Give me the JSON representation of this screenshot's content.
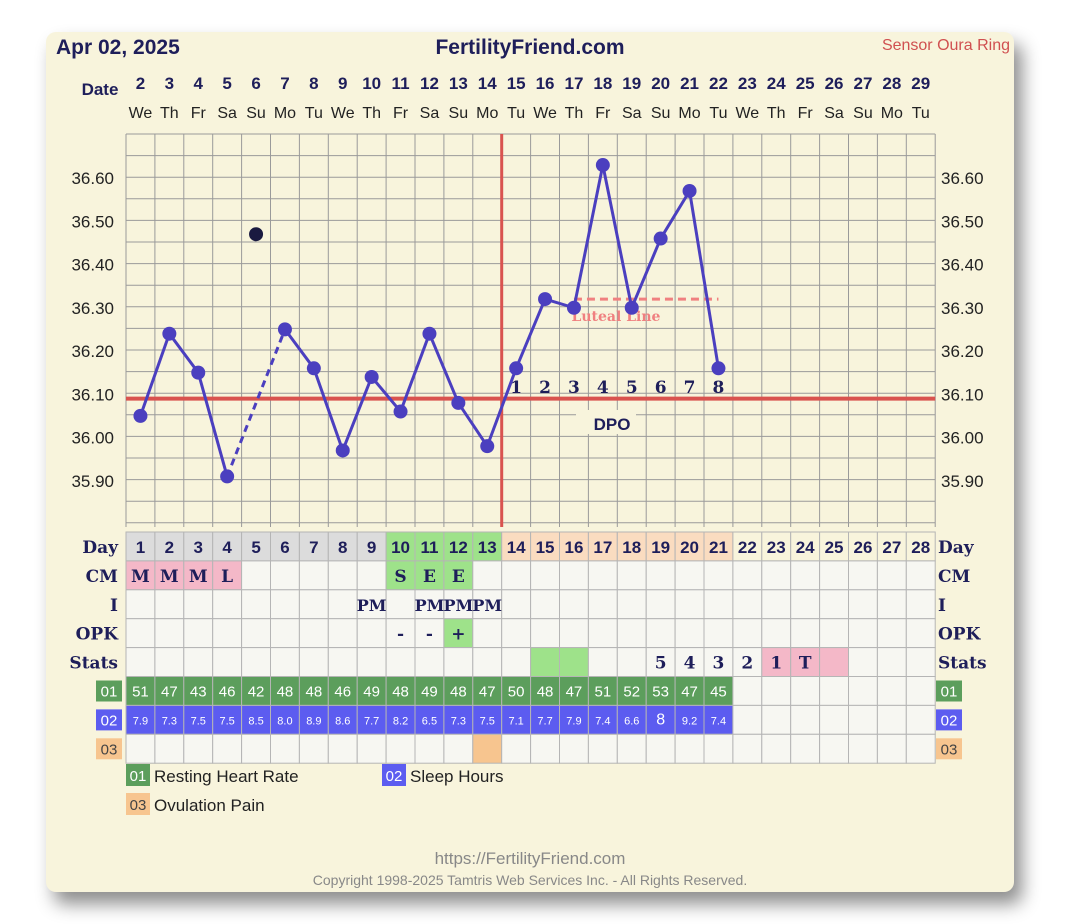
{
  "header": {
    "date": "Apr 02, 2025",
    "site": "FertilityFriend.com",
    "sensor": "Sensor Oura Ring"
  },
  "labels": {
    "date": "Date",
    "day": "Day",
    "cm": "CM",
    "i": "I",
    "opk": "OPK",
    "stats": "Stats",
    "dpo": "DPO",
    "luteal": "Luteal Line",
    "code01": "01",
    "code02": "02",
    "code03": "03"
  },
  "legend": [
    {
      "code": "01",
      "label": "Resting Heart Rate",
      "color": "#5c9e5c"
    },
    {
      "code": "02",
      "label": "Sleep Hours",
      "color": "#5c5cf0"
    },
    {
      "code": "03",
      "label": "Ovulation Pain",
      "color": "#f7c58f"
    }
  ],
  "footer": {
    "url": "https://FertilityFriend.com",
    "copyright": "Copyright 1998-2025 Tamtris Web Services Inc. - All Rights Reserved."
  },
  "colors": {
    "line": "#4b3fbf",
    "coverline": "#d9534f",
    "luteal": "#f08080",
    "grid": "#9a9a9a",
    "menstruation": "#f4b8c8",
    "fertile": "#9ee28a",
    "luteal_phase": "#fadcc0",
    "pre_ovulation": "#dcdcdc"
  },
  "chart_data": {
    "type": "line",
    "y_ticks": [
      "36.60",
      "36.50",
      "36.40",
      "36.30",
      "36.20",
      "36.10",
      "36.00",
      "35.90"
    ],
    "ylim": [
      35.8,
      36.7
    ],
    "dates": [
      "2",
      "3",
      "4",
      "5",
      "6",
      "7",
      "8",
      "9",
      "10",
      "11",
      "12",
      "13",
      "14",
      "15",
      "16",
      "17",
      "18",
      "19",
      "20",
      "21",
      "22",
      "23",
      "24",
      "25",
      "26",
      "27",
      "28",
      "29"
    ],
    "weekdays": [
      "We",
      "Th",
      "Fr",
      "Sa",
      "Su",
      "Mo",
      "Tu",
      "We",
      "Th",
      "Fr",
      "Sa",
      "Su",
      "Mo",
      "Tu",
      "We",
      "Th",
      "Fr",
      "Sa",
      "Su",
      "Mo",
      "Tu",
      "We",
      "Th",
      "Fr",
      "Sa",
      "Su",
      "Mo",
      "Tu"
    ],
    "cycle_days": [
      "1",
      "2",
      "3",
      "4",
      "5",
      "6",
      "7",
      "8",
      "9",
      "10",
      "11",
      "12",
      "13",
      "14",
      "15",
      "16",
      "17",
      "18",
      "19",
      "20",
      "21",
      "22",
      "23",
      "24",
      "25",
      "26",
      "27",
      "28"
    ],
    "temps": [
      36.05,
      36.24,
      36.15,
      35.91,
      null,
      36.25,
      36.16,
      35.97,
      36.14,
      36.06,
      36.24,
      36.08,
      35.98,
      36.16,
      36.32,
      36.3,
      36.63,
      36.3,
      36.46,
      36.57,
      36.16,
      null,
      null,
      null,
      null,
      null,
      null,
      null
    ],
    "discarded": [
      {
        "day_index": 4,
        "value": 36.47
      }
    ],
    "dashed_segments": [
      [
        3,
        5
      ]
    ],
    "coverline": 36.09,
    "ovulation_day_index": 12,
    "luteal_line": {
      "value": 36.32,
      "from_index": 15,
      "to_index": 20
    },
    "dpo": [
      "1",
      "2",
      "3",
      "4",
      "5",
      "6",
      "7",
      "8"
    ],
    "dpo_start_index": 13,
    "cm": [
      "M",
      "M",
      "M",
      "L",
      "",
      "",
      "",
      "",
      "",
      "S",
      "E",
      "E",
      "",
      "",
      "",
      "",
      "",
      "",
      "",
      "",
      "",
      "",
      "",
      "",
      "",
      "",
      "",
      ""
    ],
    "intercourse": [
      "",
      "",
      "",
      "",
      "",
      "",
      "",
      "",
      "PM",
      "",
      "PM",
      "PM",
      "PM",
      "",
      "",
      "",
      "",
      "",
      "",
      "",
      "",
      "",
      "",
      "",
      "",
      "",
      "",
      ""
    ],
    "opk": [
      "",
      "",
      "",
      "",
      "",
      "",
      "",
      "",
      "",
      "-",
      "-",
      "+",
      "",
      "",
      "",
      "",
      "",
      "",
      "",
      "",
      "",
      "",
      "",
      "",
      "",
      "",
      "",
      ""
    ],
    "stats": [
      "",
      "",
      "",
      "",
      "",
      "",
      "",
      "",
      "",
      "",
      "",
      "",
      "",
      "",
      "",
      "",
      "",
      "",
      "5",
      "4",
      "3",
      "2",
      "1",
      "T",
      "",
      "",
      "",
      ""
    ],
    "resting_heart_rate": [
      "51",
      "47",
      "43",
      "46",
      "42",
      "48",
      "48",
      "46",
      "49",
      "48",
      "49",
      "48",
      "47",
      "50",
      "48",
      "47",
      "51",
      "52",
      "53",
      "47",
      "45",
      "",
      "",
      "",
      "",
      "",
      "",
      ""
    ],
    "sleep_hours": [
      "7.9",
      "7.3",
      "7.5",
      "7.5",
      "8.5",
      "8.0",
      "8.9",
      "8.6",
      "7.7",
      "8.2",
      "6.5",
      "7.3",
      "7.5",
      "7.1",
      "7.7",
      "7.9",
      "7.4",
      "6.6",
      "8",
      "9.2",
      "7.4",
      "",
      "",
      "",
      "",
      "",
      "",
      ""
    ],
    "ovulation_pain_index": 12
  }
}
